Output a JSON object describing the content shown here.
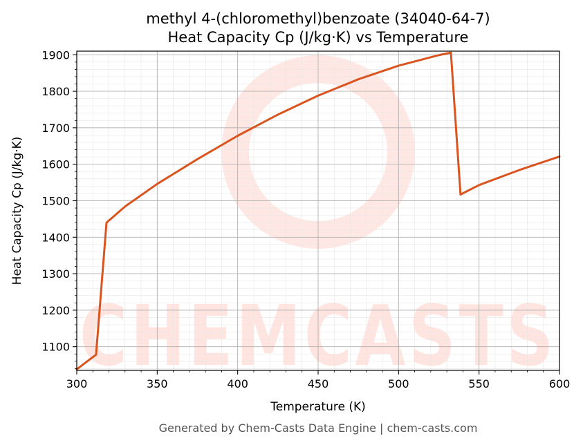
{
  "title_line1": "methyl 4-(chloromethyl)benzoate (34040-64-7)",
  "title_line2": "Heat Capacity Cp (J/kg·K) vs Temperature",
  "footer": "Generated by Chem-Casts Data Engine | chem-casts.com",
  "watermark": "CHEMCASTS",
  "colors": {
    "line": "#d9541e",
    "watermark": "#ffb3a6",
    "grid_major": "#b0b0b0",
    "grid_minor": "#e6e6e6"
  },
  "chart_data": {
    "type": "line",
    "xlabel": "Temperature (K)",
    "ylabel": "Heat Capacity Cp (J/kg·K)",
    "xlim": [
      300,
      600
    ],
    "ylim": [
      1035,
      1910
    ],
    "xticks": [
      300,
      350,
      400,
      450,
      500,
      550,
      600
    ],
    "yticks": [
      1100,
      1200,
      1300,
      1400,
      1500,
      1600,
      1700,
      1800,
      1900
    ],
    "grid": true,
    "series": [
      {
        "x": [
          300,
          312,
          318.5,
          330,
          350,
          375,
          400,
          425,
          450,
          475,
          500,
          525,
          532.5,
          538.5,
          550,
          575,
          600
        ],
        "y": [
          1038,
          1078,
          1440,
          1484,
          1546,
          1614,
          1678,
          1736,
          1788,
          1833,
          1870,
          1899,
          1906,
          1517,
          1543,
          1584,
          1621
        ]
      }
    ]
  }
}
